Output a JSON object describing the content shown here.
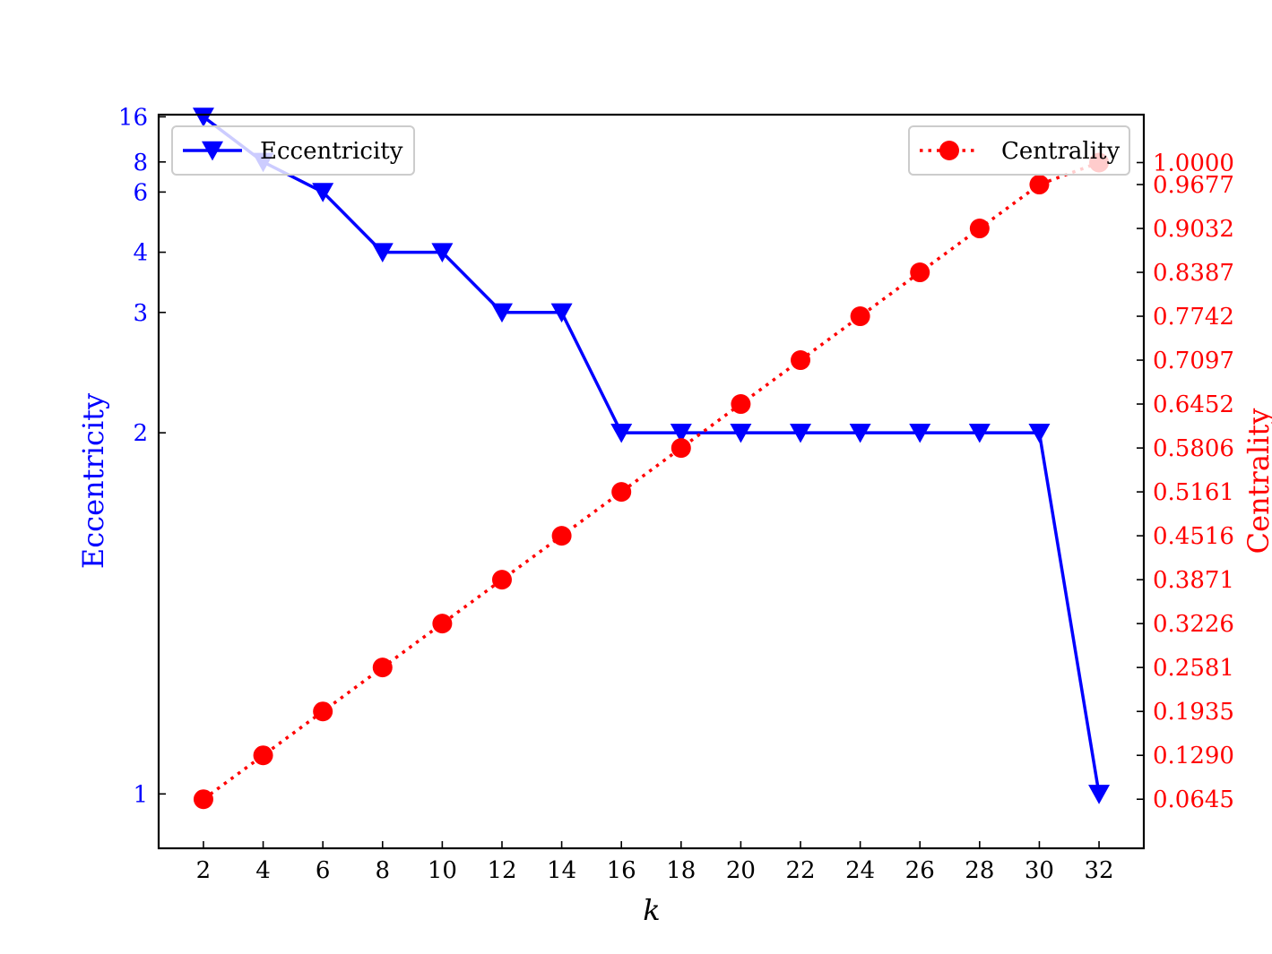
{
  "chart_data": {
    "type": "line",
    "x": [
      2,
      4,
      6,
      8,
      10,
      12,
      14,
      16,
      18,
      20,
      22,
      24,
      26,
      28,
      30,
      32
    ],
    "xlabel": "k",
    "x_ticks": [
      "2",
      "4",
      "6",
      "8",
      "10",
      "12",
      "14",
      "16",
      "18",
      "20",
      "22",
      "24",
      "26",
      "28",
      "30",
      "32"
    ],
    "xlim": [
      0.5,
      33.5
    ],
    "series": [
      {
        "name": "Eccentricity",
        "axis": "left",
        "color": "#0000ff",
        "line_style": "solid",
        "marker": "triangle-down",
        "values": [
          16,
          8,
          6,
          4,
          4,
          3,
          3,
          2,
          2,
          2,
          2,
          2,
          2,
          2,
          2,
          1
        ]
      },
      {
        "name": "Centrality",
        "axis": "right",
        "color": "#ff0000",
        "line_style": "dotted",
        "marker": "circle",
        "values": [
          0.0645,
          0.129,
          0.1935,
          0.2581,
          0.3226,
          0.3871,
          0.4516,
          0.5161,
          0.5806,
          0.6452,
          0.7097,
          0.7742,
          0.8387,
          0.9032,
          0.9677,
          1.0
        ]
      }
    ],
    "y_left": {
      "label": "Eccentricity",
      "scale": "reciprocal",
      "ticks": [
        "16",
        "8",
        "6",
        "4",
        "3",
        "2",
        "1"
      ],
      "lim": [
        0.93,
        16.8
      ],
      "color": "#0000ff"
    },
    "y_right": {
      "label": "Centrality",
      "ticks": [
        "1.0000",
        "0.9677",
        "0.9032",
        "0.8387",
        "0.7742",
        "0.7097",
        "0.6452",
        "0.5806",
        "0.5161",
        "0.4516",
        "0.3871",
        "0.3226",
        "0.2581",
        "0.1935",
        "0.1290",
        "0.0645"
      ],
      "lim": [
        -0.0076,
        1.0704
      ],
      "color": "#ff0000"
    },
    "legends": [
      {
        "entry": "Eccentricity",
        "placement": "top-left"
      },
      {
        "entry": "Centrality",
        "placement": "top-right"
      }
    ],
    "grid": false
  }
}
